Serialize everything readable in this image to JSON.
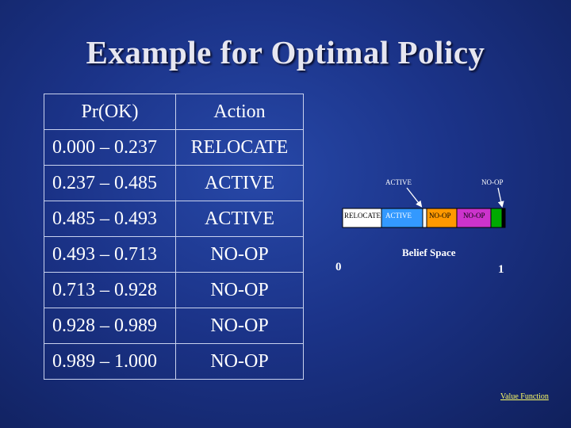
{
  "title": "Example for Optimal Policy",
  "table": {
    "headers": [
      "Pr(OK)",
      "Action"
    ],
    "rows": [
      {
        "range": "0.000 – 0.237",
        "action": "RELOCATE"
      },
      {
        "range": "0.237 – 0.485",
        "action": "ACTIVE"
      },
      {
        "range": "0.485 – 0.493",
        "action": "ACTIVE"
      },
      {
        "range": "0.493 – 0.713",
        "action": "NO-OP"
      },
      {
        "range": "0.713 – 0.928",
        "action": "NO-OP"
      },
      {
        "range": "0.928 – 0.989",
        "action": "NO-OP"
      },
      {
        "range": "0.989 – 1.000",
        "action": "NO-OP"
      }
    ]
  },
  "belief": {
    "label": "Belief Space",
    "axis_start": "0",
    "axis_end": "1",
    "callouts": [
      "ACTIVE",
      "NO-OP"
    ],
    "segments": [
      {
        "label": "RELOCATE",
        "color": "#ffffff"
      },
      {
        "label": "ACTIVE",
        "color": "#3399ff"
      },
      {
        "label": "",
        "color": "#ffffff"
      },
      {
        "label": "NO-OP",
        "color": "#ff9900"
      },
      {
        "label": "NO-OP",
        "color": "#cc33cc"
      },
      {
        "label": "",
        "color": "#00aa00"
      },
      {
        "label": "",
        "color": "#000000"
      }
    ]
  },
  "link": "Value Function"
}
